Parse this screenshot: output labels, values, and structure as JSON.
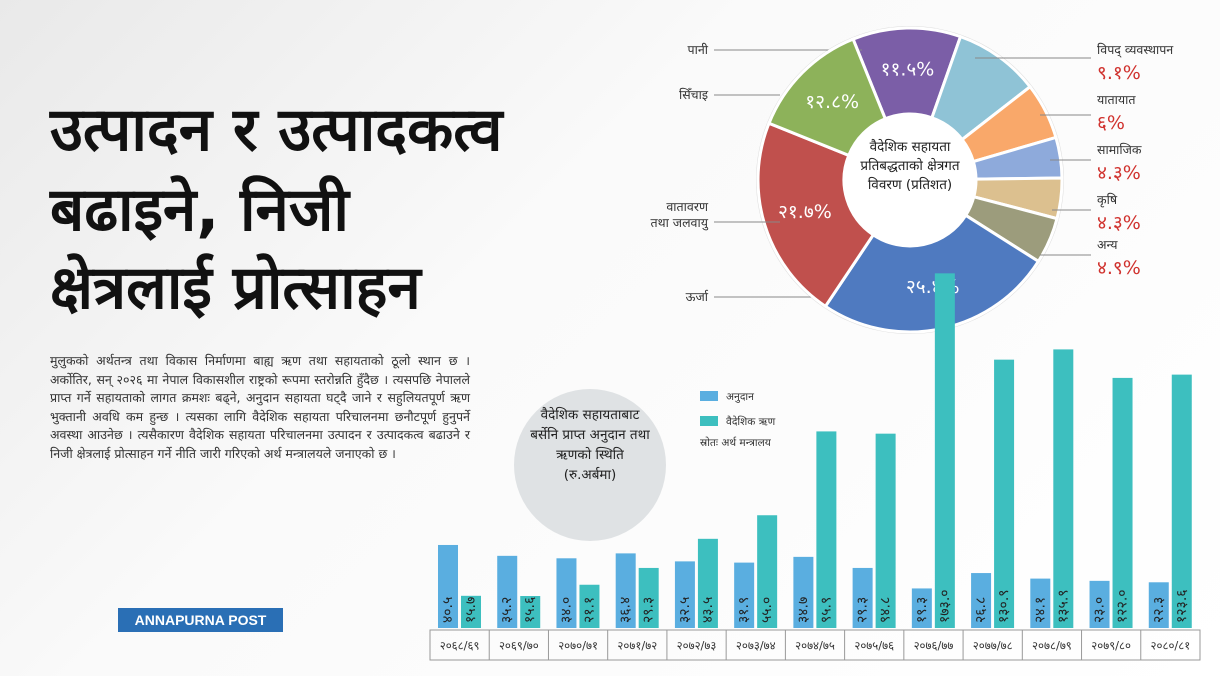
{
  "headline": [
    "उत्पादन र उत्पादकत्व",
    "बढाइने, निजी",
    "क्षेत्रलाई प्रोत्साहन"
  ],
  "body": "मुलुकको अर्थतन्त्र तथा विकास निर्माणमा बाह्य ऋण तथा सहायताको ठूलो स्थान छ । अर्कोतिर, सन् २०२६ मा नेपाल विकासशील राष्ट्रको रूपमा स्तरोन्नति हुँदैछ । त्यसपछि नेपालले प्राप्त गर्ने सहायताको लागत क्रमशः बढ्ने, अनुदान सहायता घट्दै जाने र सहुलियतपूर्ण ऋण भुक्तानी अवधि कम हुन्छ । त्यसका लागि वैदेशिक सहायता परिचालनमा छनौटपूर्ण हुनुपर्ने अवस्था आउनेछ । त्यसैकारण वैदेशिक सहायता परिचालनमा उत्पादन र उत्पादकत्व बढाउने र निजी क्षेत्रलाई प्रोत्साहन गर्ने नीति जारी गरिएको अर्थ मन्त्रालयले जनाएको छ ।",
  "brand": "ANNAPURNA POST",
  "chart_data": [
    {
      "type": "donut",
      "title": "वैदेशिक सहायता प्रतिबद्धताको क्षेत्रगत विवरण (प्रतिशत)",
      "categories": [
        "पानी",
        "विपद् व्यवस्थापन",
        "यातायात",
        "सामाजिक",
        "कृषि",
        "अन्य",
        "ऊर्जा",
        "वातावरण\nतथा जलवायु",
        "सिँचाइ"
      ],
      "values": [
        11.5,
        9.1,
        6,
        4.3,
        4.3,
        4.9,
        25.4,
        21.7,
        12.8
      ],
      "value_labels": [
        "११.५%",
        "९.१%",
        "६%",
        "४.३%",
        "४.३%",
        "४.९%",
        "२५.४%",
        "२१.७%",
        "१२.८%"
      ],
      "colors": [
        "#7b5ea7",
        "#8fc3d6",
        "#f9a86a",
        "#8eaadb",
        "#dcc08f",
        "#9c9c7c",
        "#4f7ac0",
        "#c0504d",
        "#8db25a"
      ]
    },
    {
      "type": "bar",
      "title": "वैदेशिक सहायताबाट बर्सेनि प्राप्त अनुदान तथा ऋणको स्थिति (रु.अर्बमा)",
      "source": "स्रोतः अर्थ मन्त्रालय",
      "categories": [
        "२०६८/६९",
        "२०६९/७०",
        "२०७०/७१",
        "२०७१/७२",
        "२०७२/७३",
        "२०७३/७४",
        "२०७४/७५",
        "२०७५/७६",
        "२०७६/७७",
        "२०७७/७८",
        "२०७८/७९",
        "२०७९/८०",
        "२०८०/८१"
      ],
      "series": [
        {
          "name": "अनुदान",
          "color": "#5aaee0",
          "values": [
            40.5,
            35.2,
            34.0,
            36.4,
            32.5,
            31.9,
            34.7,
            29.3,
            19.3,
            26.8,
            24.1,
            23.0,
            22.3
          ],
          "value_labels": [
            "४०.५",
            "३५.२",
            "३४.०",
            "३६.४",
            "३२.५",
            "३१.९",
            "३४.७",
            "२९.३",
            "१९.३",
            "२६.८",
            "२४.१",
            "२३.०",
            "२२.३"
          ]
        },
        {
          "name": "वैदेशिक ऋण",
          "color": "#3dbfbf",
          "values": [
            15.7,
            15.6,
            21.1,
            29.3,
            43.5,
            55.0,
            95.9,
            94.8,
            173.0,
            130.9,
            135.9,
            122.0,
            123.6
          ],
          "value_labels": [
            "१५.७",
            "१५.६",
            "२१.१",
            "२९.३",
            "४३.५",
            "५५.०",
            "९५.९",
            "९४.८",
            "१७३.०",
            "१३०.९",
            "१३५.९",
            "१२२.०",
            "१२३.६"
          ]
        }
      ]
    }
  ]
}
